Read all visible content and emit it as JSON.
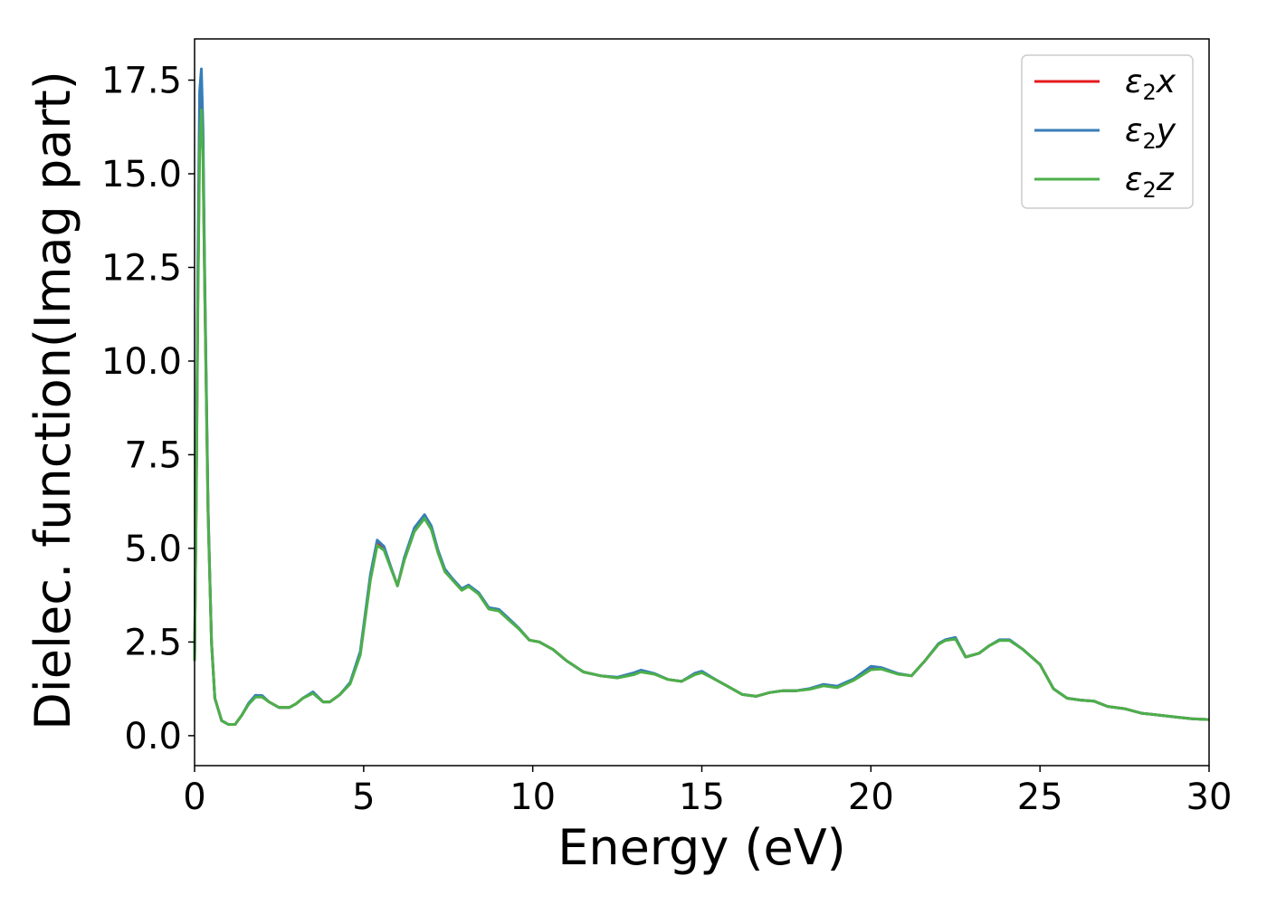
{
  "chart_data": {
    "type": "line",
    "title": "",
    "xlabel": "Energy (eV)",
    "ylabel": "Dielec. function(Imag part)",
    "xlim": [
      0,
      30
    ],
    "ylim": [
      -0.8,
      18.6
    ],
    "xticks": [
      0,
      5,
      10,
      15,
      20,
      25,
      30
    ],
    "xtick_labels": [
      "0",
      "5",
      "10",
      "15",
      "20",
      "25",
      "30"
    ],
    "yticks": [
      0.0,
      2.5,
      5.0,
      7.5,
      10.0,
      12.5,
      15.0,
      17.5
    ],
    "ytick_labels": [
      "0.0",
      "2.5",
      "5.0",
      "7.5",
      "10.0",
      "12.5",
      "15.0",
      "17.5"
    ],
    "grid": false,
    "legend_position": "top-right",
    "series": [
      {
        "name": "ε₂x",
        "legend_base": "ε",
        "legend_sub": "2",
        "legend_suffix": "x",
        "color": "#e41a1c",
        "x": [
          0.0,
          0.05,
          0.1,
          0.15,
          0.2,
          0.25,
          0.3,
          0.4,
          0.5,
          0.6,
          0.8,
          1.0,
          1.2,
          1.4,
          1.6,
          1.8,
          2.0,
          2.2,
          2.5,
          2.8,
          3.0,
          3.2,
          3.5,
          3.8,
          4.0,
          4.3,
          4.6,
          4.9,
          5.2,
          5.4,
          5.6,
          5.8,
          6.0,
          6.2,
          6.5,
          6.8,
          7.0,
          7.2,
          7.4,
          7.6,
          7.9,
          8.1,
          8.4,
          8.7,
          9.0,
          9.3,
          9.6,
          9.9,
          10.2,
          10.6,
          11.0,
          11.5,
          12.0,
          12.5,
          13.0,
          13.2,
          13.6,
          14.0,
          14.4,
          14.8,
          15.0,
          15.4,
          15.8,
          16.2,
          16.6,
          17.0,
          17.4,
          17.8,
          18.2,
          18.6,
          19.0,
          19.5,
          20.0,
          20.3,
          20.8,
          21.2,
          21.6,
          22.0,
          22.2,
          22.5,
          22.8,
          23.2,
          23.5,
          23.8,
          24.1,
          24.5,
          25.0,
          25.4,
          25.8,
          26.2,
          26.6,
          27.0,
          27.5,
          28.0,
          28.5,
          29.0,
          29.5,
          30.0
        ],
        "y": [
          2.0,
          6.5,
          12.0,
          16.0,
          16.9,
          15.6,
          12.0,
          6.0,
          2.5,
          1.0,
          0.4,
          0.3,
          0.3,
          0.55,
          0.85,
          1.05,
          1.05,
          0.9,
          0.75,
          0.75,
          0.85,
          1.0,
          1.15,
          0.9,
          0.9,
          1.1,
          1.4,
          2.2,
          4.2,
          5.15,
          5.0,
          4.5,
          4.0,
          4.7,
          5.5,
          5.85,
          5.55,
          4.9,
          4.4,
          4.2,
          3.9,
          4.0,
          3.8,
          3.4,
          3.35,
          3.1,
          2.85,
          2.55,
          2.5,
          2.3,
          2.0,
          1.7,
          1.6,
          1.55,
          1.65,
          1.72,
          1.65,
          1.5,
          1.45,
          1.65,
          1.7,
          1.5,
          1.3,
          1.1,
          1.05,
          1.15,
          1.2,
          1.2,
          1.25,
          1.35,
          1.3,
          1.5,
          1.8,
          1.8,
          1.65,
          1.6,
          2.0,
          2.45,
          2.55,
          2.6,
          2.1,
          2.2,
          2.4,
          2.55,
          2.55,
          2.3,
          1.9,
          1.25,
          1.0,
          0.95,
          0.92,
          0.78,
          0.72,
          0.6,
          0.55,
          0.5,
          0.45,
          0.43
        ]
      },
      {
        "name": "ε₂y",
        "legend_base": "ε",
        "legend_sub": "2",
        "legend_suffix": "y",
        "color": "#377eb8",
        "x": [
          0.0,
          0.05,
          0.1,
          0.15,
          0.2,
          0.25,
          0.3,
          0.4,
          0.5,
          0.6,
          0.8,
          1.0,
          1.2,
          1.4,
          1.6,
          1.8,
          2.0,
          2.2,
          2.5,
          2.8,
          3.0,
          3.2,
          3.5,
          3.8,
          4.0,
          4.3,
          4.6,
          4.9,
          5.2,
          5.4,
          5.6,
          5.8,
          6.0,
          6.2,
          6.5,
          6.8,
          7.0,
          7.2,
          7.4,
          7.6,
          7.9,
          8.1,
          8.4,
          8.7,
          9.0,
          9.3,
          9.6,
          9.9,
          10.2,
          10.6,
          11.0,
          11.5,
          12.0,
          12.5,
          13.0,
          13.2,
          13.6,
          14.0,
          14.4,
          14.8,
          15.0,
          15.4,
          15.8,
          16.2,
          16.6,
          17.0,
          17.4,
          17.8,
          18.2,
          18.6,
          19.0,
          19.5,
          20.0,
          20.3,
          20.8,
          21.2,
          21.6,
          22.0,
          22.2,
          22.5,
          22.8,
          23.2,
          23.5,
          23.8,
          24.1,
          24.5,
          25.0,
          25.4,
          25.8,
          26.2,
          26.6,
          27.0,
          27.5,
          28.0,
          28.5,
          29.0,
          29.5,
          30.0
        ],
        "y": [
          2.0,
          6.8,
          12.8,
          17.2,
          17.8,
          16.2,
          12.3,
          6.1,
          2.5,
          1.0,
          0.4,
          0.3,
          0.3,
          0.55,
          0.87,
          1.08,
          1.07,
          0.9,
          0.75,
          0.75,
          0.85,
          1.0,
          1.17,
          0.9,
          0.9,
          1.1,
          1.42,
          2.25,
          4.3,
          5.22,
          5.05,
          4.52,
          4.0,
          4.75,
          5.55,
          5.9,
          5.6,
          4.95,
          4.45,
          4.22,
          3.92,
          4.02,
          3.82,
          3.42,
          3.37,
          3.12,
          2.86,
          2.55,
          2.5,
          2.3,
          2.0,
          1.7,
          1.6,
          1.56,
          1.68,
          1.75,
          1.66,
          1.5,
          1.45,
          1.67,
          1.72,
          1.5,
          1.3,
          1.1,
          1.05,
          1.15,
          1.2,
          1.2,
          1.26,
          1.37,
          1.32,
          1.52,
          1.85,
          1.82,
          1.66,
          1.6,
          2.0,
          2.46,
          2.56,
          2.62,
          2.1,
          2.2,
          2.4,
          2.56,
          2.56,
          2.3,
          1.9,
          1.25,
          1.0,
          0.95,
          0.92,
          0.78,
          0.72,
          0.6,
          0.55,
          0.5,
          0.45,
          0.43
        ]
      },
      {
        "name": "ε₂z",
        "legend_base": "ε",
        "legend_sub": "2",
        "legend_suffix": "z",
        "color": "#4daf4a",
        "x": [
          0.0,
          0.05,
          0.1,
          0.15,
          0.2,
          0.25,
          0.3,
          0.4,
          0.5,
          0.6,
          0.8,
          1.0,
          1.2,
          1.4,
          1.6,
          1.8,
          2.0,
          2.2,
          2.5,
          2.8,
          3.0,
          3.2,
          3.5,
          3.8,
          4.0,
          4.3,
          4.6,
          4.9,
          5.2,
          5.4,
          5.6,
          5.8,
          6.0,
          6.2,
          6.5,
          6.8,
          7.0,
          7.2,
          7.4,
          7.6,
          7.9,
          8.1,
          8.4,
          8.7,
          9.0,
          9.3,
          9.6,
          9.9,
          10.2,
          10.6,
          11.0,
          11.5,
          12.0,
          12.5,
          13.0,
          13.2,
          13.6,
          14.0,
          14.4,
          14.8,
          15.0,
          15.4,
          15.8,
          16.2,
          16.6,
          17.0,
          17.4,
          17.8,
          18.2,
          18.6,
          19.0,
          19.5,
          20.0,
          20.3,
          20.8,
          21.2,
          21.6,
          22.0,
          22.2,
          22.5,
          22.8,
          23.2,
          23.5,
          23.8,
          24.1,
          24.5,
          25.0,
          25.4,
          25.8,
          26.2,
          26.6,
          27.0,
          27.5,
          28.0,
          28.5,
          29.0,
          29.5,
          30.0
        ],
        "y": [
          2.0,
          6.3,
          11.6,
          15.6,
          16.7,
          15.4,
          11.9,
          5.9,
          2.5,
          1.0,
          0.4,
          0.3,
          0.3,
          0.55,
          0.84,
          1.03,
          1.03,
          0.9,
          0.75,
          0.75,
          0.85,
          1.0,
          1.13,
          0.9,
          0.9,
          1.1,
          1.38,
          2.15,
          4.15,
          5.08,
          4.95,
          4.48,
          4.0,
          4.68,
          5.45,
          5.8,
          5.5,
          4.88,
          4.38,
          4.18,
          3.88,
          3.98,
          3.78,
          3.38,
          3.33,
          3.08,
          2.84,
          2.55,
          2.5,
          2.3,
          2.0,
          1.7,
          1.6,
          1.54,
          1.63,
          1.7,
          1.64,
          1.5,
          1.45,
          1.63,
          1.68,
          1.5,
          1.3,
          1.1,
          1.05,
          1.15,
          1.2,
          1.2,
          1.24,
          1.33,
          1.28,
          1.48,
          1.76,
          1.78,
          1.64,
          1.6,
          2.0,
          2.44,
          2.54,
          2.58,
          2.1,
          2.2,
          2.4,
          2.54,
          2.54,
          2.3,
          1.9,
          1.25,
          1.0,
          0.95,
          0.92,
          0.78,
          0.72,
          0.6,
          0.55,
          0.5,
          0.45,
          0.43
        ]
      }
    ]
  }
}
